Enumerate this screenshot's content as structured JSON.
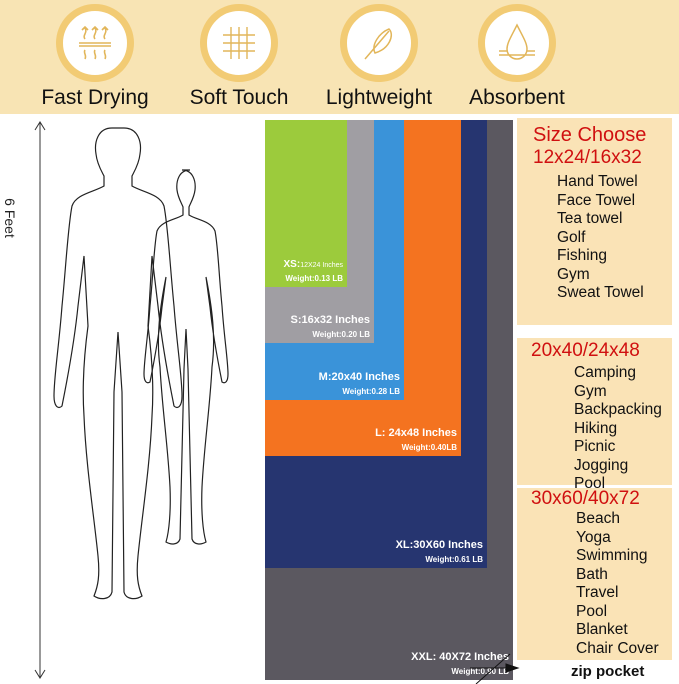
{
  "features": [
    {
      "icon": "heat-waves-icon",
      "label": "Fast Drying"
    },
    {
      "icon": "woven-fabric-icon",
      "label": "Soft Touch"
    },
    {
      "icon": "feather-icon",
      "label": "Lightweight"
    },
    {
      "icon": "water-drop-icon",
      "label": "Absorbent"
    }
  ],
  "height_label": "6 Feet",
  "towels": [
    {
      "size": "XXL: 40X72 Inches",
      "weight": "Weight:0.90 LB",
      "color": "#5b5860"
    },
    {
      "size": "XL:30X60 Inches",
      "weight": "Weight:0.61 LB",
      "color": "#263570"
    },
    {
      "size": "L: 24x48 Inches",
      "weight": "Weight:0.40LB",
      "color": "#f47320"
    },
    {
      "size": "M:20x40 Inches",
      "weight": "Weight:0.28 LB",
      "color": "#3a93d9"
    },
    {
      "size": "S:16x32 Inches",
      "weight": "Weight:0.20 LB",
      "color": "#a09ea3"
    },
    {
      "size": "XS:",
      "size_detail": "12X24 Inches",
      "weight": "Weight:0.13 LB",
      "color": "#9ccb3c"
    }
  ],
  "zip_pocket": "zip pocket",
  "size_choose": "Size Choose",
  "groups": [
    {
      "heading": "12x24/16x32",
      "items": [
        "Hand Towel",
        "Face Towel",
        "Tea towel",
        "Golf",
        "Fishing",
        "Gym",
        "Sweat Towel"
      ]
    },
    {
      "heading": "20x40/24x48",
      "items": [
        "Camping",
        "Gym",
        "Backpacking",
        "Hiking",
        "Picnic",
        "Jogging",
        "Pool"
      ]
    },
    {
      "heading": "30x60/40x72",
      "items": [
        "Beach",
        "Yoga",
        "Swimming",
        "Bath",
        "Travel",
        "Pool",
        "Blanket",
        "Chair Cover"
      ]
    }
  ]
}
